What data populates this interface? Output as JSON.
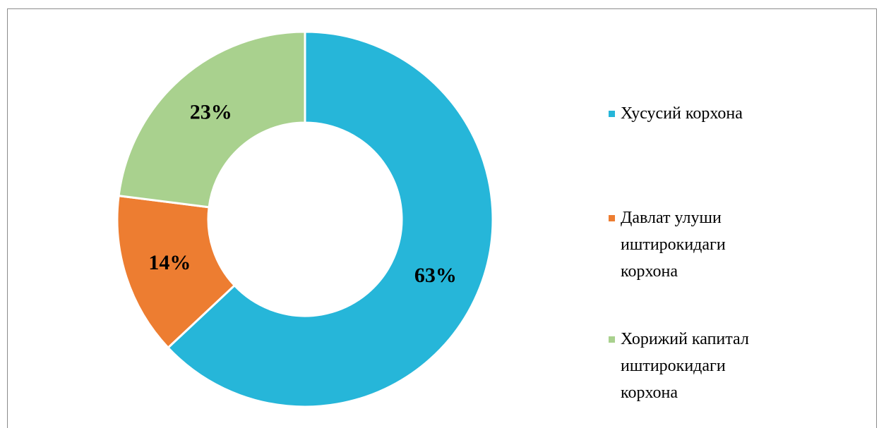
{
  "chart_data": {
    "type": "donut",
    "categories": [
      "Хусусий корхона",
      "Давлат улуши иштирокидаги корхона",
      "Хорижий капитал иштирокидаги корхона"
    ],
    "values": [
      63,
      14,
      23
    ],
    "value_labels": [
      "63%",
      "14%",
      "23%"
    ],
    "colors": [
      "#26b6d9",
      "#ed7d31",
      "#a9d18e"
    ],
    "legend": "right"
  }
}
